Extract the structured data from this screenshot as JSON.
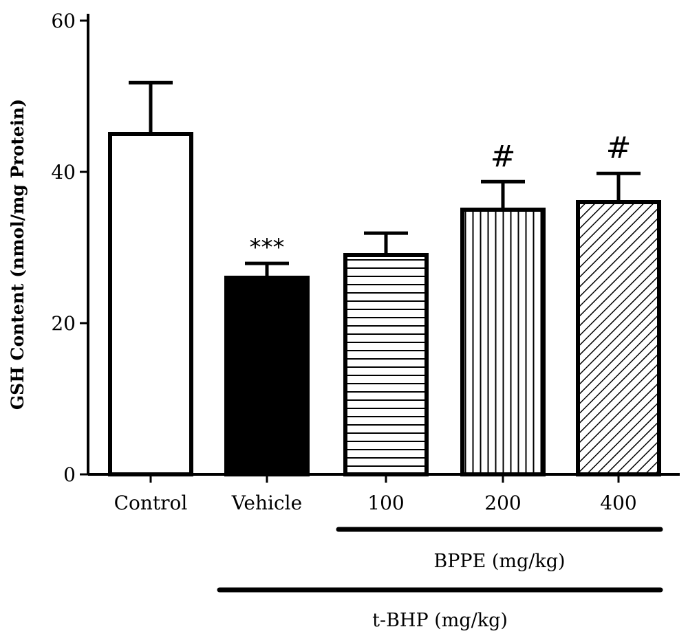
{
  "chart_data": {
    "type": "bar",
    "title": "",
    "xlabel": "",
    "ylabel": "GSH Content (nmol/mg Protein)",
    "ylim": [
      0,
      60
    ],
    "yticks": [
      0,
      20,
      40,
      60
    ],
    "grid": false,
    "categories": [
      "Control",
      "Vehicle",
      "100",
      "200",
      "400"
    ],
    "values": [
      45,
      26,
      29,
      35,
      36
    ],
    "errors": [
      6.8,
      1.9,
      2.9,
      3.7,
      3.8
    ],
    "patterns": [
      "white",
      "black",
      "horizontal-lines",
      "vertical-lines",
      "diagonal-lines"
    ],
    "annotations": [
      "",
      "***",
      "",
      "#",
      "#"
    ],
    "groups": [
      {
        "label": "BPPE (mg/kg)",
        "from": 2,
        "to": 4
      },
      {
        "label": "t-BHP (mg/kg)",
        "from": 1,
        "to": 4
      }
    ],
    "colors": {
      "stroke": "#000000",
      "fill_white": "#ffffff",
      "fill_black": "#000000"
    }
  }
}
